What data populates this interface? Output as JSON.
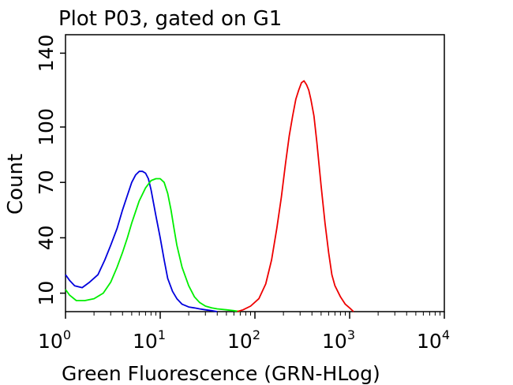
{
  "chart_data": {
    "type": "line",
    "title": "Plot P03, gated on G1",
    "xlabel": "Green Fluorescence (GRN-HLog)",
    "ylabel": "Count",
    "x_scale": "log",
    "xlim": [
      1,
      10000
    ],
    "ylim": [
      0,
      150
    ],
    "grid": false,
    "x_ticks": [
      {
        "base": "10",
        "exp": "0",
        "value": 1
      },
      {
        "base": "10",
        "exp": "1",
        "value": 10
      },
      {
        "base": "10",
        "exp": "2",
        "value": 100
      },
      {
        "base": "10",
        "exp": "3",
        "value": 1000
      },
      {
        "base": "10",
        "exp": "4",
        "value": 10000
      }
    ],
    "y_ticks": [
      {
        "label": "10",
        "value": 10
      },
      {
        "label": "40",
        "value": 40
      },
      {
        "label": "70",
        "value": 70
      },
      {
        "label": "100",
        "value": 100
      },
      {
        "label": "140",
        "value": 140
      }
    ],
    "series": [
      {
        "color": "#0000dd",
        "x": [
          1.0,
          1.1,
          1.25,
          1.5,
          1.8,
          2.2,
          2.6,
          3.0,
          3.5,
          4.0,
          4.5,
          5.0,
          5.5,
          6.0,
          6.5,
          7.0,
          7.5,
          8.0,
          9.0,
          10.0,
          11.0,
          12.0,
          13.5,
          15.0,
          17.0,
          20.0,
          23.0,
          26.0,
          30.0,
          35.0,
          40.0
        ],
        "y": [
          20,
          17,
          14,
          13,
          16,
          20,
          28,
          36,
          45,
          55,
          63,
          70,
          74,
          76,
          76,
          75,
          72,
          66,
          52,
          40,
          28,
          18,
          11,
          7,
          4,
          2.5,
          2,
          1.5,
          1,
          0.5,
          0
        ]
      },
      {
        "color": "#00ee00",
        "x": [
          1.0,
          1.1,
          1.3,
          1.6,
          2.0,
          2.5,
          3.0,
          3.5,
          4.0,
          4.5,
          5.0,
          6.0,
          7.0,
          8.0,
          9.0,
          10.0,
          11.0,
          12.0,
          13.0,
          14.0,
          15.0,
          17.0,
          20.0,
          23.0,
          26.0,
          30.0,
          35.0,
          40.0,
          50.0,
          60.0,
          70.0
        ],
        "y": [
          12,
          9,
          6,
          6,
          7,
          10,
          16,
          24,
          32,
          40,
          48,
          60,
          67,
          71,
          72,
          72,
          70,
          64,
          55,
          45,
          36,
          24,
          14,
          8,
          5,
          3,
          2,
          1.5,
          1,
          0.5,
          0
        ]
      },
      {
        "color": "#ee0000",
        "x": [
          65.0,
          75.0,
          90.0,
          110.0,
          130.0,
          150.0,
          170.0,
          190.0,
          210.0,
          230.0,
          250.0,
          270.0,
          290.0,
          310.0,
          330.0,
          350.0,
          370.0,
          390.0,
          420.0,
          450.0,
          500.0,
          550.0,
          600.0,
          650.0,
          700.0,
          800.0,
          900.0,
          1000.0,
          1100.0
        ],
        "y": [
          0,
          1,
          3,
          7,
          15,
          28,
          45,
          62,
          80,
          95,
          106,
          115,
          120,
          124,
          125,
          123,
          120,
          115,
          106,
          92,
          68,
          48,
          32,
          20,
          14,
          8,
          4,
          2,
          0
        ]
      }
    ]
  }
}
